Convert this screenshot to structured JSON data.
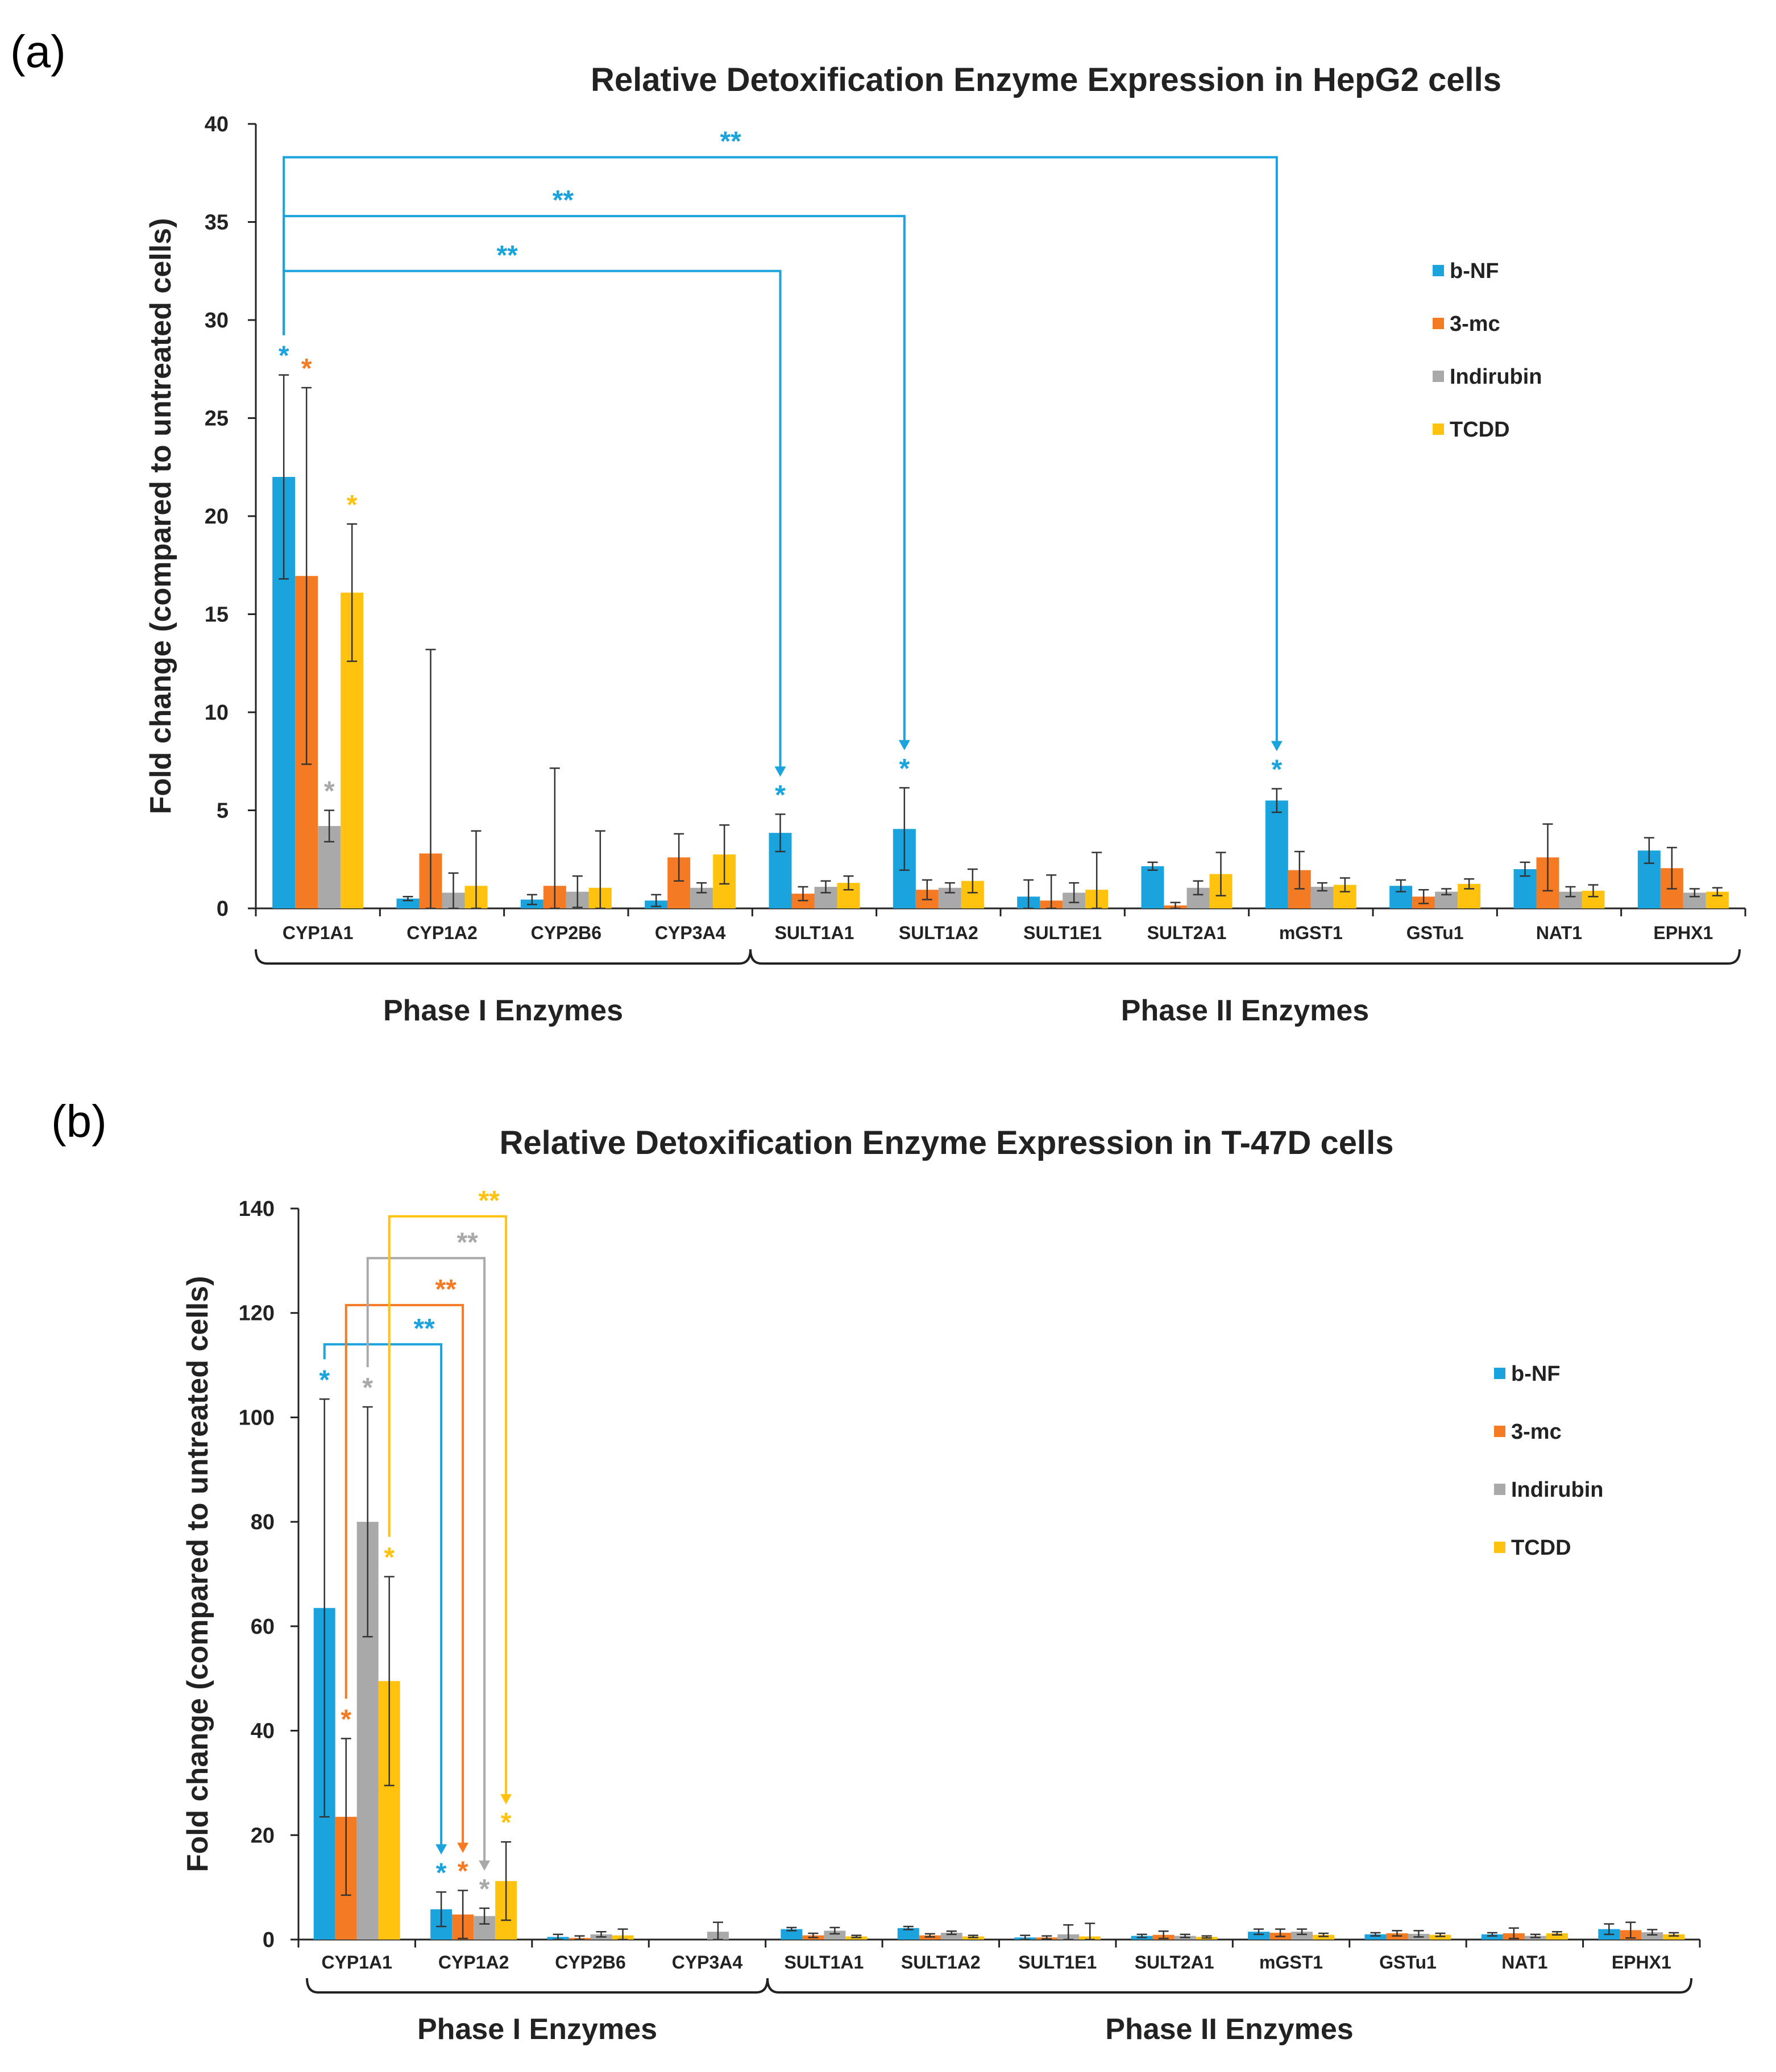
{
  "colors": {
    "bnf": "#1aa3dc",
    "mc": "#f47a23",
    "ind": "#a9a9a9",
    "tcdd": "#ffc20e",
    "axis": "#222222",
    "err": "#333333"
  },
  "chart_data": [
    {
      "type": "bar",
      "panel_label": "(a)",
      "title": "Relative Detoxification Enzyme Expression in HepG2 cells",
      "ylabel": "Fold change (compared to untreated cells)",
      "xlabel": "",
      "ylim": [
        0,
        40
      ],
      "yticks": [
        "0",
        "5",
        "10",
        "15",
        "20",
        "25",
        "30",
        "35",
        "40"
      ],
      "grid": false,
      "legend_position": "right",
      "categories": [
        "CYP1A1",
        "CYP1A2",
        "CYP2B6",
        "CYP3A4",
        "SULT1A1",
        "SULT1A2",
        "SULT1E1",
        "SULT2A1",
        "mGST1",
        "GSTu1",
        "NAT1",
        "EPHX1"
      ],
      "series": [
        {
          "name": "b-NF",
          "color_key": "bnf",
          "values": [
            22.0,
            0.5,
            0.45,
            0.4,
            3.85,
            4.05,
            0.6,
            2.15,
            5.5,
            1.15,
            2.0,
            2.95
          ],
          "errors": [
            5.2,
            0.1,
            0.25,
            0.3,
            0.95,
            2.1,
            0.85,
            0.2,
            0.6,
            0.3,
            0.35,
            0.65
          ]
        },
        {
          "name": "3-mc",
          "color_key": "mc",
          "values": [
            16.95,
            2.8,
            1.15,
            2.6,
            0.75,
            0.95,
            0.4,
            0.15,
            1.95,
            0.6,
            2.6,
            2.05
          ],
          "errors": [
            9.6,
            10.4,
            6.0,
            1.2,
            0.35,
            0.5,
            1.3,
            0.15,
            0.95,
            0.35,
            1.7,
            1.05
          ]
        },
        {
          "name": "Indirubin",
          "color_key": "ind",
          "values": [
            4.2,
            0.8,
            0.85,
            1.05,
            1.1,
            1.05,
            0.8,
            1.05,
            1.1,
            0.85,
            0.85,
            0.8
          ],
          "errors": [
            0.8,
            1.0,
            0.8,
            0.25,
            0.3,
            0.25,
            0.5,
            0.35,
            0.2,
            0.15,
            0.25,
            0.2
          ]
        },
        {
          "name": "TCDD",
          "color_key": "tcdd",
          "values": [
            16.1,
            1.15,
            1.05,
            2.75,
            1.3,
            1.4,
            0.95,
            1.75,
            1.2,
            1.25,
            0.9,
            0.85
          ],
          "errors": [
            3.5,
            2.8,
            2.9,
            1.5,
            0.35,
            0.6,
            1.9,
            1.1,
            0.35,
            0.25,
            0.3,
            0.2
          ]
        }
      ],
      "significance_single": [
        {
          "category": 0,
          "series": 0,
          "label": "*"
        },
        {
          "category": 0,
          "series": 1,
          "label": "*"
        },
        {
          "category": 0,
          "series": 2,
          "label": "*"
        },
        {
          "category": 0,
          "series": 3,
          "label": "*"
        },
        {
          "category": 4,
          "series": 0,
          "label": "*"
        },
        {
          "category": 5,
          "series": 0,
          "label": "*"
        },
        {
          "category": 8,
          "series": 0,
          "label": "*"
        }
      ],
      "significance_brackets": [
        {
          "from_category": 0,
          "from_series": 0,
          "to_category": 4,
          "to_series": 0,
          "y": 32.5,
          "label": "**",
          "color_key": "bnf"
        },
        {
          "from_category": 0,
          "from_series": 0,
          "to_category": 5,
          "to_series": 0,
          "y": 35.3,
          "label": "**",
          "color_key": "bnf"
        },
        {
          "from_category": 0,
          "from_series": 0,
          "to_category": 8,
          "to_series": 0,
          "y": 38.3,
          "label": "**",
          "color_key": "bnf"
        }
      ],
      "groups": [
        {
          "label": "Phase I Enzymes",
          "from": 0,
          "to": 3
        },
        {
          "label": "Phase II Enzymes",
          "from": 4,
          "to": 11
        }
      ]
    },
    {
      "type": "bar",
      "panel_label": "(b)",
      "title": "Relative Detoxification Enzyme Expression in T-47D cells",
      "ylabel": "Fold change (compared to untreated cells)",
      "xlabel": "",
      "ylim": [
        0,
        140
      ],
      "yticks": [
        "0",
        "20",
        "40",
        "60",
        "80",
        "100",
        "120",
        "140"
      ],
      "grid": false,
      "legend_position": "right",
      "categories": [
        "CYP1A1",
        "CYP1A2",
        "CYP2B6",
        "CYP3A4",
        "SULT1A1",
        "SULT1A2",
        "SULT1E1",
        "SULT2A1",
        "mGST1",
        "GSTu1",
        "NAT1",
        "EPHX1"
      ],
      "series": [
        {
          "name": "b-NF",
          "color_key": "bnf",
          "values": [
            63.5,
            5.8,
            0.5,
            0.0,
            2.0,
            2.2,
            0.4,
            0.7,
            1.5,
            1.0,
            1.0,
            2.0
          ],
          "errors": [
            40.0,
            3.3,
            0.5,
            0.0,
            0.3,
            0.3,
            0.4,
            0.3,
            0.5,
            0.3,
            0.3,
            1.0
          ]
        },
        {
          "name": "3-mc",
          "color_key": "mc",
          "values": [
            23.5,
            4.8,
            0.3,
            0.0,
            0.8,
            0.8,
            0.4,
            0.9,
            1.3,
            1.2,
            1.2,
            1.8
          ],
          "errors": [
            15.0,
            4.6,
            0.4,
            0.0,
            0.4,
            0.3,
            0.3,
            0.7,
            0.7,
            0.5,
            1.0,
            1.5
          ]
        },
        {
          "name": "Indirubin",
          "color_key": "ind",
          "values": [
            80.0,
            4.5,
            1.0,
            1.5,
            1.7,
            1.3,
            1.0,
            0.7,
            1.5,
            1.1,
            0.7,
            1.4
          ],
          "errors": [
            22.0,
            1.5,
            0.5,
            1.8,
            0.6,
            0.3,
            1.8,
            0.3,
            0.5,
            0.6,
            0.3,
            0.5
          ]
        },
        {
          "name": "TCDD",
          "color_key": "tcdd",
          "values": [
            49.5,
            11.2,
            0.8,
            0.0,
            0.6,
            0.6,
            0.6,
            0.5,
            0.9,
            0.9,
            1.2,
            1.0
          ],
          "errors": [
            20.0,
            7.5,
            1.2,
            0.0,
            0.2,
            0.2,
            2.5,
            0.2,
            0.3,
            0.3,
            0.3,
            0.3
          ]
        }
      ],
      "significance_single": [
        {
          "category": 0,
          "series": 0,
          "label": "*"
        },
        {
          "category": 0,
          "series": 1,
          "label": "*"
        },
        {
          "category": 0,
          "series": 2,
          "label": "*"
        },
        {
          "category": 0,
          "series": 3,
          "label": "*"
        },
        {
          "category": 1,
          "series": 0,
          "label": "*"
        },
        {
          "category": 1,
          "series": 1,
          "label": "*"
        },
        {
          "category": 1,
          "series": 2,
          "label": "*"
        },
        {
          "category": 1,
          "series": 3,
          "label": "*"
        }
      ],
      "significance_brackets": [
        {
          "from_category": 0,
          "from_series": 0,
          "to_category": 1,
          "to_series": 0,
          "y": 114,
          "label": "**",
          "color_key": "bnf"
        },
        {
          "from_category": 0,
          "from_series": 1,
          "to_category": 1,
          "to_series": 1,
          "y": 121.5,
          "label": "**",
          "color_key": "mc"
        },
        {
          "from_category": 0,
          "from_series": 2,
          "to_category": 1,
          "to_series": 2,
          "y": 130.5,
          "label": "**",
          "color_key": "ind"
        },
        {
          "from_category": 0,
          "from_series": 3,
          "to_category": 1,
          "to_series": 3,
          "y": 138.5,
          "label": "**",
          "color_key": "tcdd"
        }
      ],
      "groups": [
        {
          "label": "Phase I Enzymes",
          "from": 0,
          "to": 3
        },
        {
          "label": "Phase II Enzymes",
          "from": 4,
          "to": 11
        }
      ]
    }
  ]
}
